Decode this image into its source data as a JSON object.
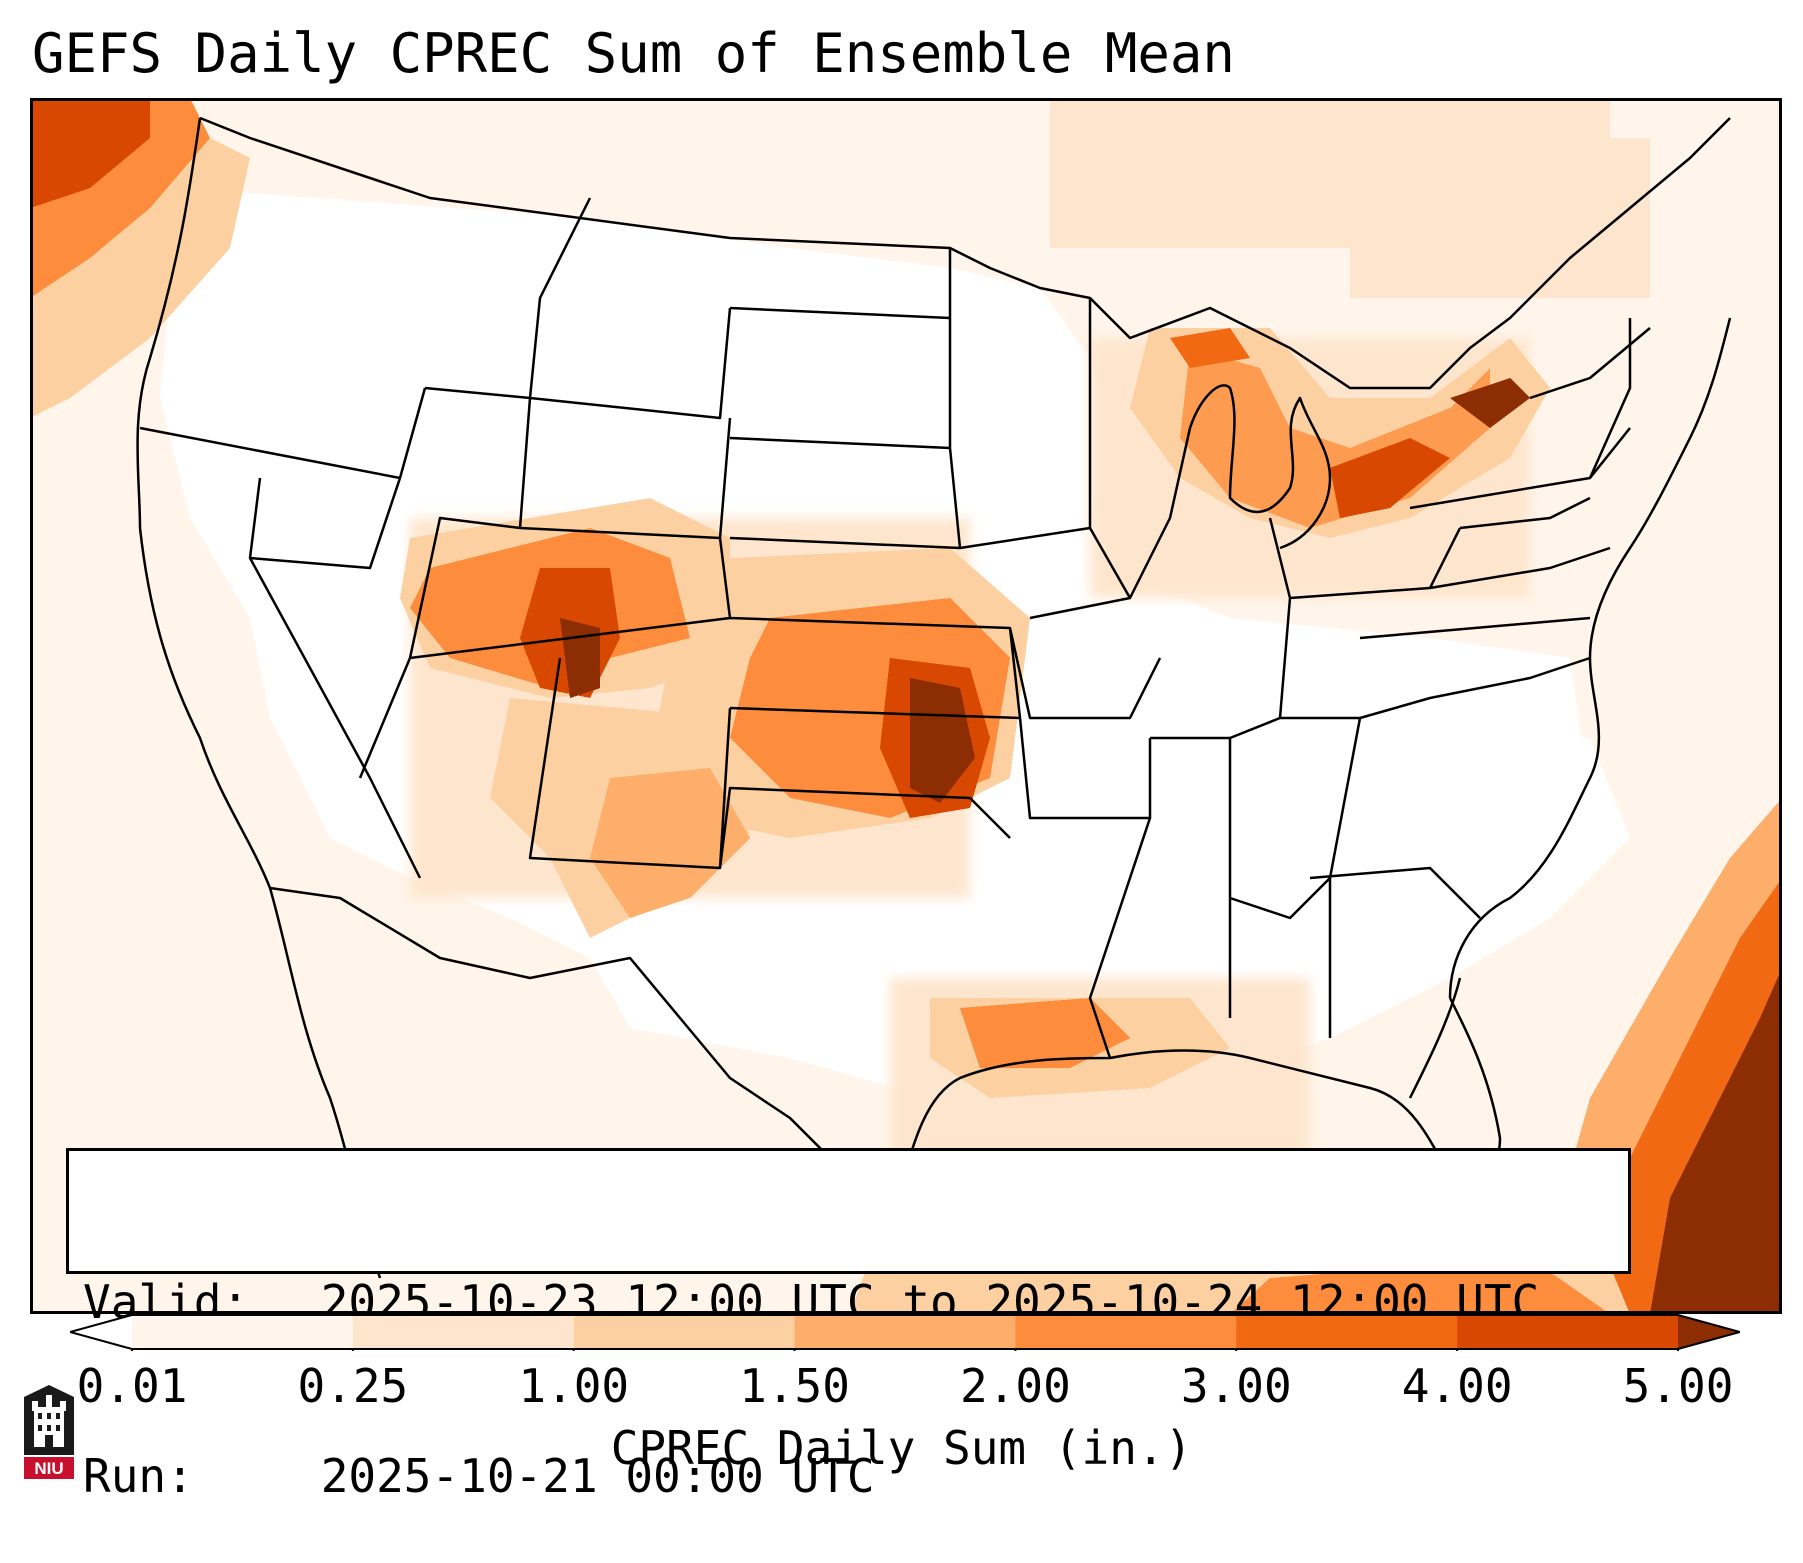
{
  "title": "GEFS Daily CPREC Sum of Ensemble Mean",
  "valid_box": {
    "valid_label": "Valid:",
    "valid_value": "2025-10-23 12:00 UTC to 2025-10-24 12:00 UTC",
    "run_label": "Run:",
    "run_value": "2025-10-21 00:00 UTC"
  },
  "colorbar": {
    "label": "CPREC Daily Sum (in.)",
    "ticks": [
      "0.01",
      "0.25",
      "1.00",
      "1.50",
      "2.00",
      "3.00",
      "4.00",
      "5.00"
    ],
    "colors": [
      "#fff5eb",
      "#fee6ce",
      "#fdd0a2",
      "#fdae6b",
      "#fd8d3c",
      "#f16913",
      "#d94801",
      "#8c2d04"
    ],
    "extend": "both"
  },
  "logo": {
    "text": "NIU"
  },
  "map": {
    "projection": "conic",
    "region": "Contiguous United States",
    "features": [
      "state borders",
      "coastlines",
      "country borders"
    ],
    "precip_max_regions": [
      "Oklahoma / Kansas",
      "Southeastern Colorado",
      "Western Atlantic",
      "Lake Erie / Lake Ontario",
      "Northwestern Gulf of Mexico",
      "Pacific Northwest coast"
    ]
  }
}
